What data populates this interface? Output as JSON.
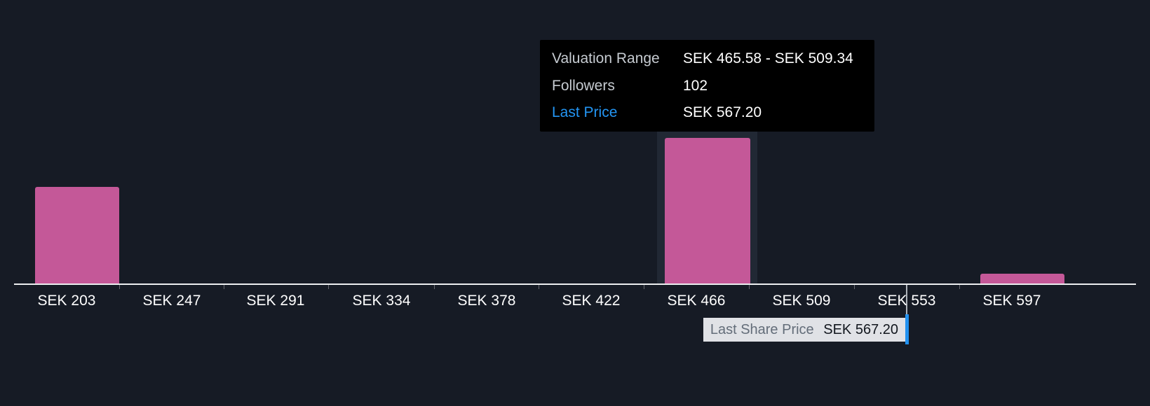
{
  "colors": {
    "background": "#161B25",
    "bar": "#C45898",
    "highlight_column": "#212834",
    "axis": "#EDEEF0",
    "tick_label": "#FFFFFF",
    "tooltip_background": "#000000",
    "tooltip_label": "#C6CBD1",
    "tooltip_value": "#FFFFFF",
    "accent_blue": "#2395F3",
    "chip_background": "#E0E2E6",
    "chip_label": "#636D79",
    "chip_value": "#11161D"
  },
  "tooltip": {
    "rows": [
      {
        "label": "Valuation Range",
        "value": "SEK 465.58 - SEK 509.34"
      },
      {
        "label": "Followers",
        "value": "102"
      },
      {
        "label": "Last Price",
        "value": "SEK 567.20"
      }
    ]
  },
  "marker": {
    "label": "Last Share Price",
    "value": "SEK 567.20"
  },
  "chart_data": {
    "type": "bar",
    "title": "Community valuation range histogram (price bins in SEK)",
    "categories": [
      "SEK 203",
      "SEK 247",
      "SEK 291",
      "SEK 334",
      "SEK 378",
      "SEK 422",
      "SEK 466",
      "SEK 509",
      "SEK 553",
      "SEK 597"
    ],
    "values": [
      140,
      0,
      0,
      0,
      0,
      0,
      210,
      0,
      0,
      16
    ],
    "values_note": "relative bar heights in pixels; chart displays no y-axis",
    "highlighted_category": "SEK 466",
    "xlabel": "",
    "ylabel": "",
    "grid": false,
    "legend": false,
    "annotations": {
      "valuation_range": "SEK 465.58 - SEK 509.34",
      "followers": 102,
      "last_price": "SEK 567.20",
      "last_share_price_marker_label": "Last Share Price SEK 567.20"
    }
  }
}
